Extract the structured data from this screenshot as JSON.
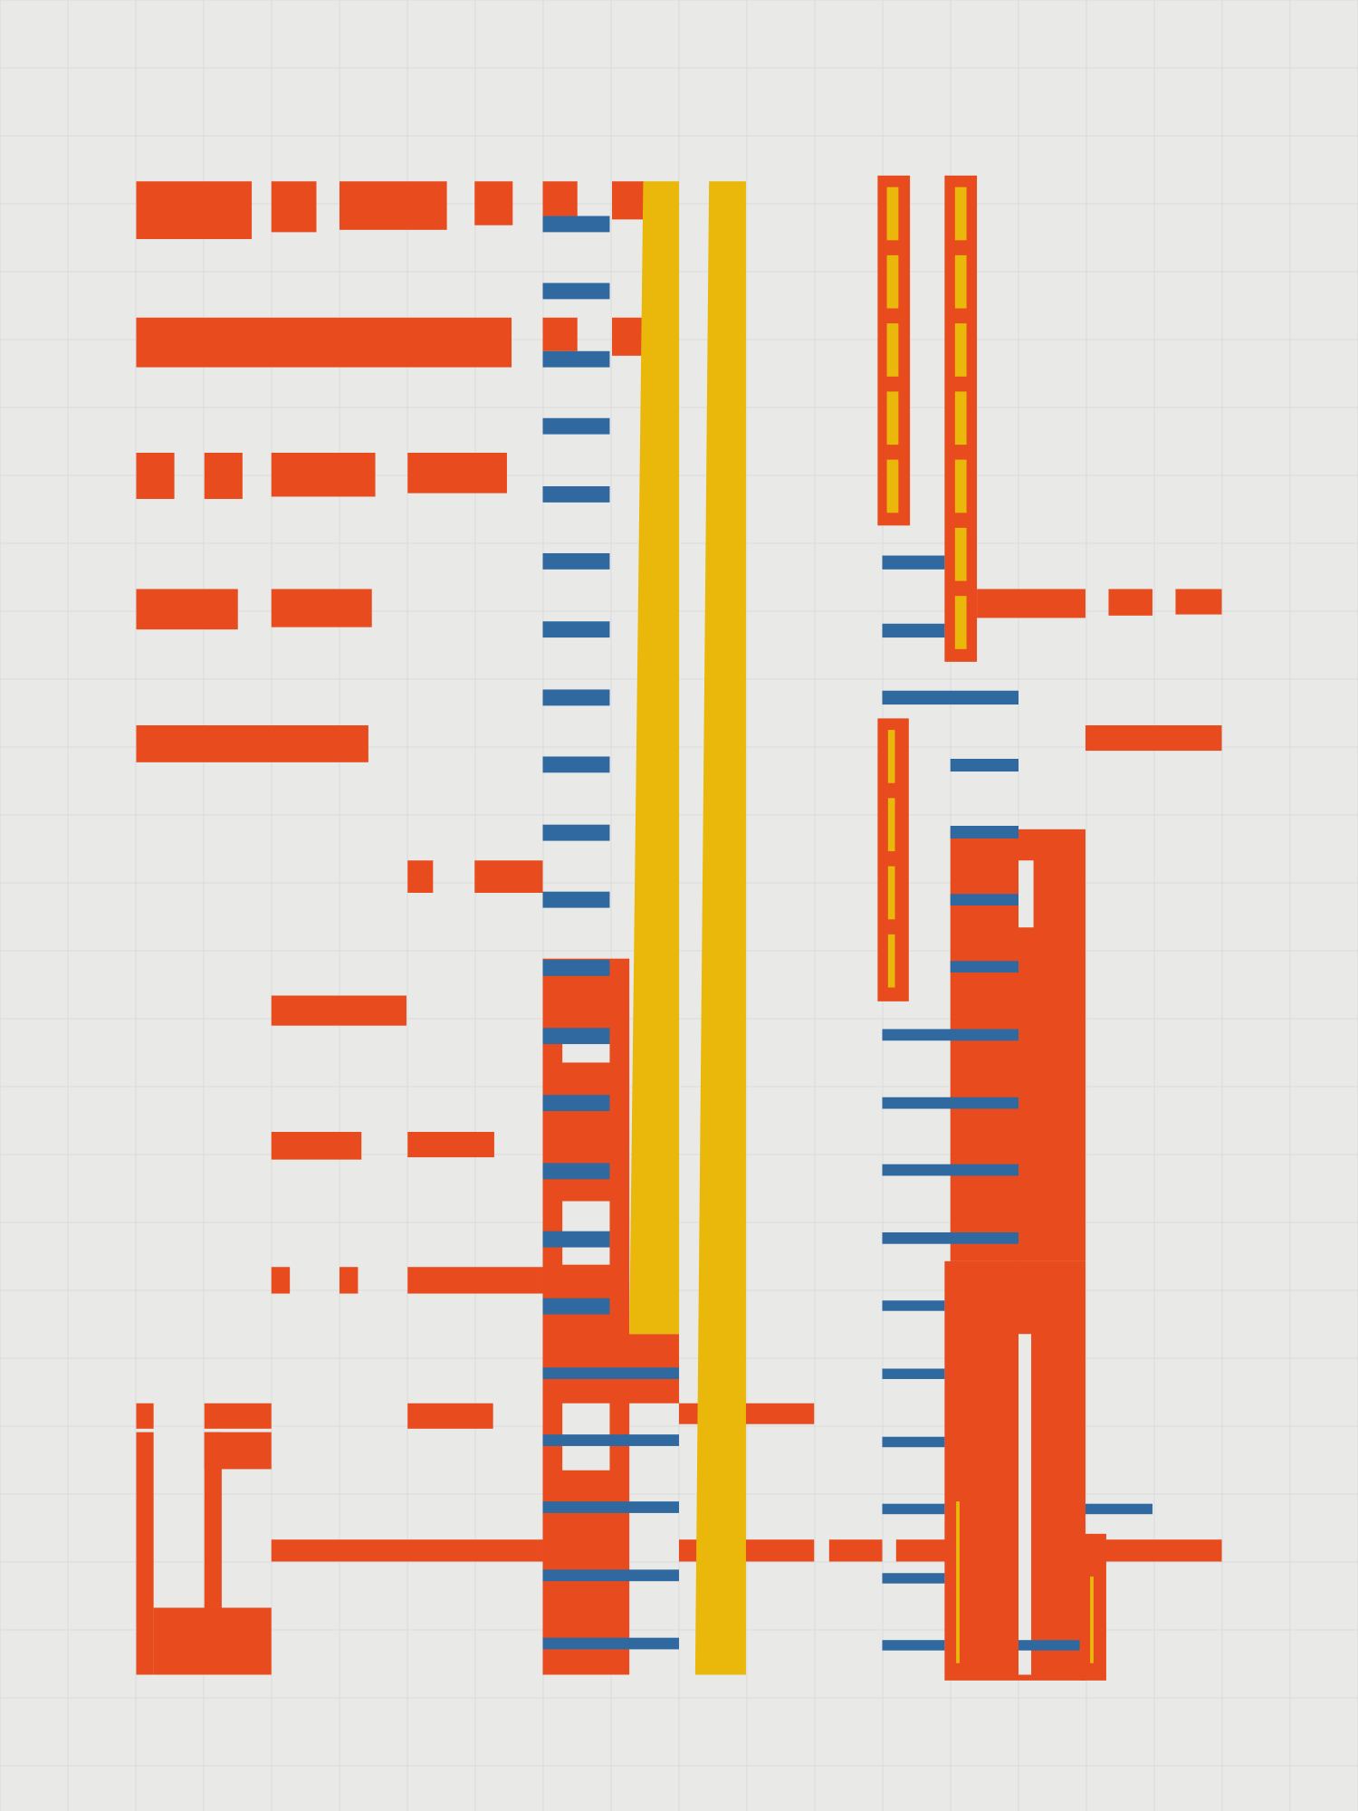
{
  "artwork": {
    "style": "abstract geometric composition",
    "colors": {
      "background": "#e9e9e8",
      "grid": "#d6d6d6",
      "red": "#e84c1e",
      "blue": "#2f69a0",
      "yellow": "#e9b80b"
    }
  }
}
